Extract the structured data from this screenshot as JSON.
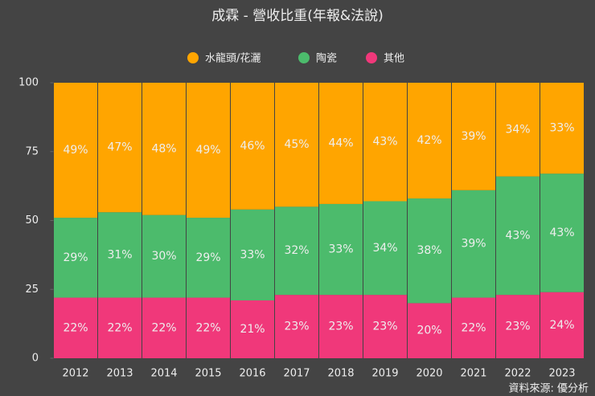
{
  "chart_data": {
    "type": "stacked-bar",
    "title": "成霖 - 營收比重(年報&法說)",
    "categories": [
      "2012",
      "2013",
      "2014",
      "2015",
      "2016",
      "2017",
      "2018",
      "2019",
      "2020",
      "2021",
      "2022",
      "2023"
    ],
    "series": [
      {
        "name": "水龍頭/花灑",
        "color": "#ffa500",
        "values": [
          49,
          47,
          48,
          49,
          46,
          45,
          44,
          43,
          42,
          39,
          34,
          33
        ],
        "value_labels": [
          "49%",
          "47%",
          "48%",
          "49%",
          "46%",
          "45%",
          "44%",
          "43%",
          "42%",
          "39%",
          "34%",
          "33%"
        ]
      },
      {
        "name": "陶瓷",
        "color": "#4cbb6c",
        "values": [
          29,
          31,
          30,
          29,
          33,
          32,
          33,
          34,
          38,
          39,
          43,
          43
        ],
        "value_labels": [
          "29%",
          "31%",
          "30%",
          "29%",
          "33%",
          "32%",
          "33%",
          "34%",
          "38%",
          "39%",
          "43%",
          "43%"
        ]
      },
      {
        "name": "其他",
        "color": "#f0387a",
        "values": [
          22,
          22,
          22,
          22,
          21,
          23,
          23,
          23,
          20,
          22,
          23,
          24
        ],
        "value_labels": [
          "22%",
          "22%",
          "22%",
          "22%",
          "21%",
          "23%",
          "23%",
          "23%",
          "20%",
          "22%",
          "23%",
          "24%"
        ]
      }
    ],
    "ylim": [
      0,
      100
    ],
    "yticks": [
      0,
      25,
      50,
      75,
      100
    ],
    "source": "資料來源: 優分析"
  }
}
